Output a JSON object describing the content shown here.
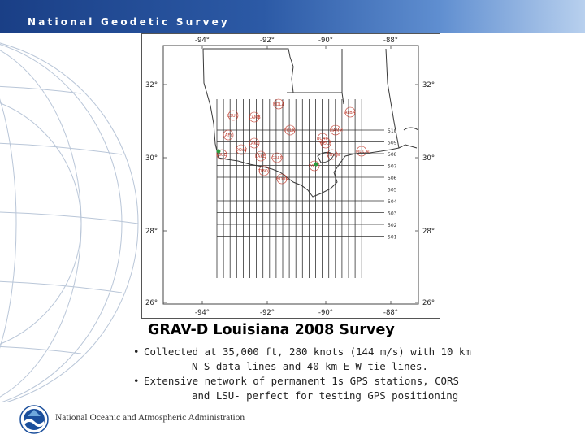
{
  "header": {
    "title": "National Geodetic Survey"
  },
  "map": {
    "lon_labels": [
      "-94°",
      "-92°",
      "-90°",
      "-88°"
    ],
    "lat_labels": [
      "32°",
      "30°",
      "28°",
      "26°"
    ],
    "ew_line_labels": [
      "510",
      "509",
      "508",
      "507",
      "506",
      "505",
      "504",
      "503",
      "502",
      "501"
    ],
    "station_labels": [
      "LSU1",
      "CAMB",
      "LSUE",
      "LAKC",
      "FOLK",
      "HAMM",
      "BCAT",
      "ALBA",
      "MOCAL",
      "GOLF",
      "DOAY",
      "COVIN",
      "LAKE",
      "GRAD",
      "HOUM",
      "LAFY",
      "NOLA",
      "TIBO",
      "LYCD"
    ],
    "colors": {
      "flight_line": "#333333",
      "coast": "#3a3a3a",
      "station": "#c0392b",
      "gps": "#2e9b3e"
    }
  },
  "caption": {
    "title": "GRAV-D Louisiana 2008 Survey",
    "bullet1_line1": "Collected at 35,000 ft, 280 knots (144 m/s) with 10 km",
    "bullet1_line2": "N-S data lines and 40 km E-W tie lines.",
    "bullet2_line1": "Extensive network of permanent 1s GPS stations, CORS",
    "bullet2_line2": "and LSU- perfect for testing GPS positioning"
  },
  "footer": {
    "agency": "National Oceanic and Atmospheric Administration"
  }
}
